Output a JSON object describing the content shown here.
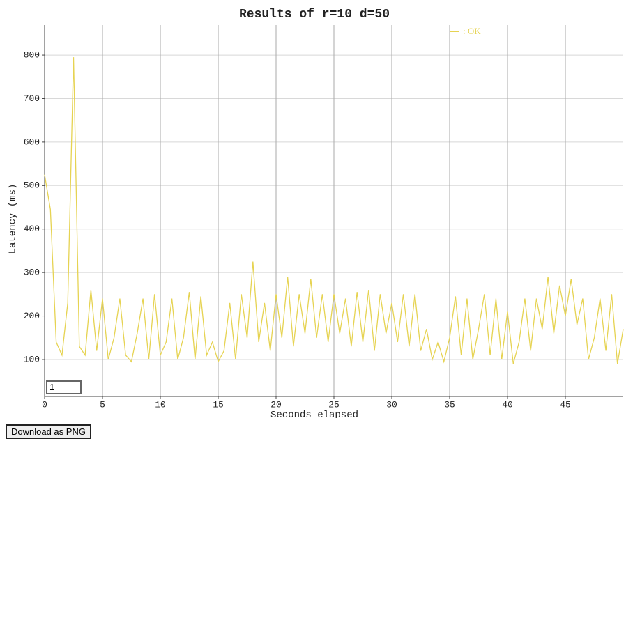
{
  "chart_data": {
    "type": "line",
    "title": "Results of r=10 d=50",
    "x_label": "Seconds elapsed",
    "y_label": "Latency (ms)",
    "x": [
      0,
      0.5,
      1,
      1.5,
      2,
      2.5,
      3,
      3.5,
      4,
      4.5,
      5,
      5.5,
      6,
      6.5,
      7,
      7.5,
      8,
      8.5,
      9,
      9.5,
      10,
      10.5,
      11,
      11.5,
      12,
      12.5,
      13,
      13.5,
      14,
      14.5,
      15,
      15.5,
      16,
      16.5,
      17,
      17.5,
      18,
      18.5,
      19,
      19.5,
      20,
      20.5,
      21,
      21.5,
      22,
      22.5,
      23,
      23.5,
      24,
      24.5,
      25,
      25.5,
      26,
      26.5,
      27,
      27.5,
      28,
      28.5,
      29,
      29.5,
      30,
      30.5,
      31,
      31.5,
      32,
      32.5,
      33,
      33.5,
      34,
      34.5,
      35,
      35.5,
      36,
      36.5,
      37,
      37.5,
      38,
      38.5,
      39,
      39.5,
      40,
      40.5,
      41,
      41.5,
      42,
      42.5,
      43,
      43.5,
      44,
      44.5,
      45,
      45.5,
      46,
      46.5,
      47,
      47.5,
      48,
      48.5,
      49,
      49.5,
      50
    ],
    "series": [
      {
        "name": ": OK",
        "color": "#e6d352",
        "values": [
          525,
          445,
          140,
          110,
          230,
          795,
          130,
          110,
          260,
          120,
          240,
          100,
          150,
          240,
          110,
          95,
          160,
          240,
          100,
          250,
          110,
          140,
          240,
          100,
          150,
          255,
          100,
          245,
          110,
          140,
          95,
          120,
          230,
          100,
          250,
          150,
          325,
          140,
          230,
          120,
          250,
          150,
          290,
          130,
          250,
          160,
          285,
          150,
          250,
          140,
          250,
          160,
          240,
          130,
          255,
          140,
          260,
          120,
          250,
          160,
          230,
          140,
          250,
          130,
          250,
          120,
          170,
          100,
          140,
          95,
          150,
          245,
          110,
          240,
          100,
          170,
          250,
          110,
          240,
          100,
          210,
          90,
          140,
          240,
          120,
          240,
          170,
          290,
          160,
          270,
          200,
          285,
          180,
          240,
          100,
          150,
          240,
          120,
          250,
          90,
          170
        ]
      }
    ],
    "xlim": [
      0,
      50
    ],
    "ylim": [
      15,
      869
    ],
    "xticks": [
      0,
      5,
      10,
      15,
      20,
      25,
      30,
      35,
      40,
      45
    ],
    "yticks": [
      100,
      200,
      300,
      400,
      500,
      600,
      700,
      800
    ],
    "grid": true,
    "legend": "top-right",
    "roll_period": "1",
    "download_button": "Download as PNG"
  }
}
